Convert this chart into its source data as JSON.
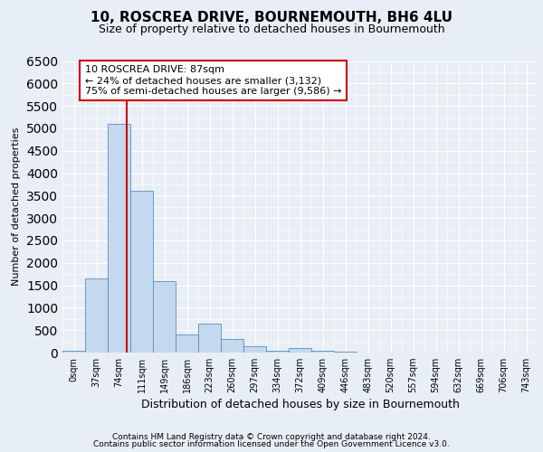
{
  "title": "10, ROSCREA DRIVE, BOURNEMOUTH, BH6 4LU",
  "subtitle": "Size of property relative to detached houses in Bournemouth",
  "xlabel": "Distribution of detached houses by size in Bournemouth",
  "ylabel": "Number of detached properties",
  "footnote1": "Contains HM Land Registry data © Crown copyright and database right 2024.",
  "footnote2": "Contains public sector information licensed under the Open Government Licence v3.0.",
  "annotation_line1": "10 ROSCREA DRIVE: 87sqm",
  "annotation_line2": "← 24% of detached houses are smaller (3,132)",
  "annotation_line3": "75% of semi-detached houses are larger (9,586) →",
  "bar_categories": [
    "0sqm",
    "37sqm",
    "74sqm",
    "111sqm",
    "149sqm",
    "186sqm",
    "223sqm",
    "260sqm",
    "297sqm",
    "334sqm",
    "372sqm",
    "409sqm",
    "446sqm",
    "483sqm",
    "520sqm",
    "557sqm",
    "594sqm",
    "632sqm",
    "669sqm",
    "706sqm",
    "743sqm"
  ],
  "bar_values": [
    50,
    1650,
    5100,
    3600,
    1600,
    400,
    650,
    300,
    150,
    50,
    100,
    50,
    30,
    10,
    5,
    3,
    2,
    1,
    0,
    0,
    0
  ],
  "bar_color": "#c5d9ee",
  "bar_edge_color": "#5b8db8",
  "vline_color": "#cc0000",
  "vline_x_index": 2.35,
  "ylim_max": 6500,
  "annotation_box_edgecolor": "#cc0000",
  "bg_color": "#e8eef6",
  "grid_color": "#ffffff",
  "title_fontsize": 11,
  "subtitle_fontsize": 9,
  "xlabel_fontsize": 9,
  "ylabel_fontsize": 8,
  "tick_fontsize": 7,
  "footnote_fontsize": 6.5
}
